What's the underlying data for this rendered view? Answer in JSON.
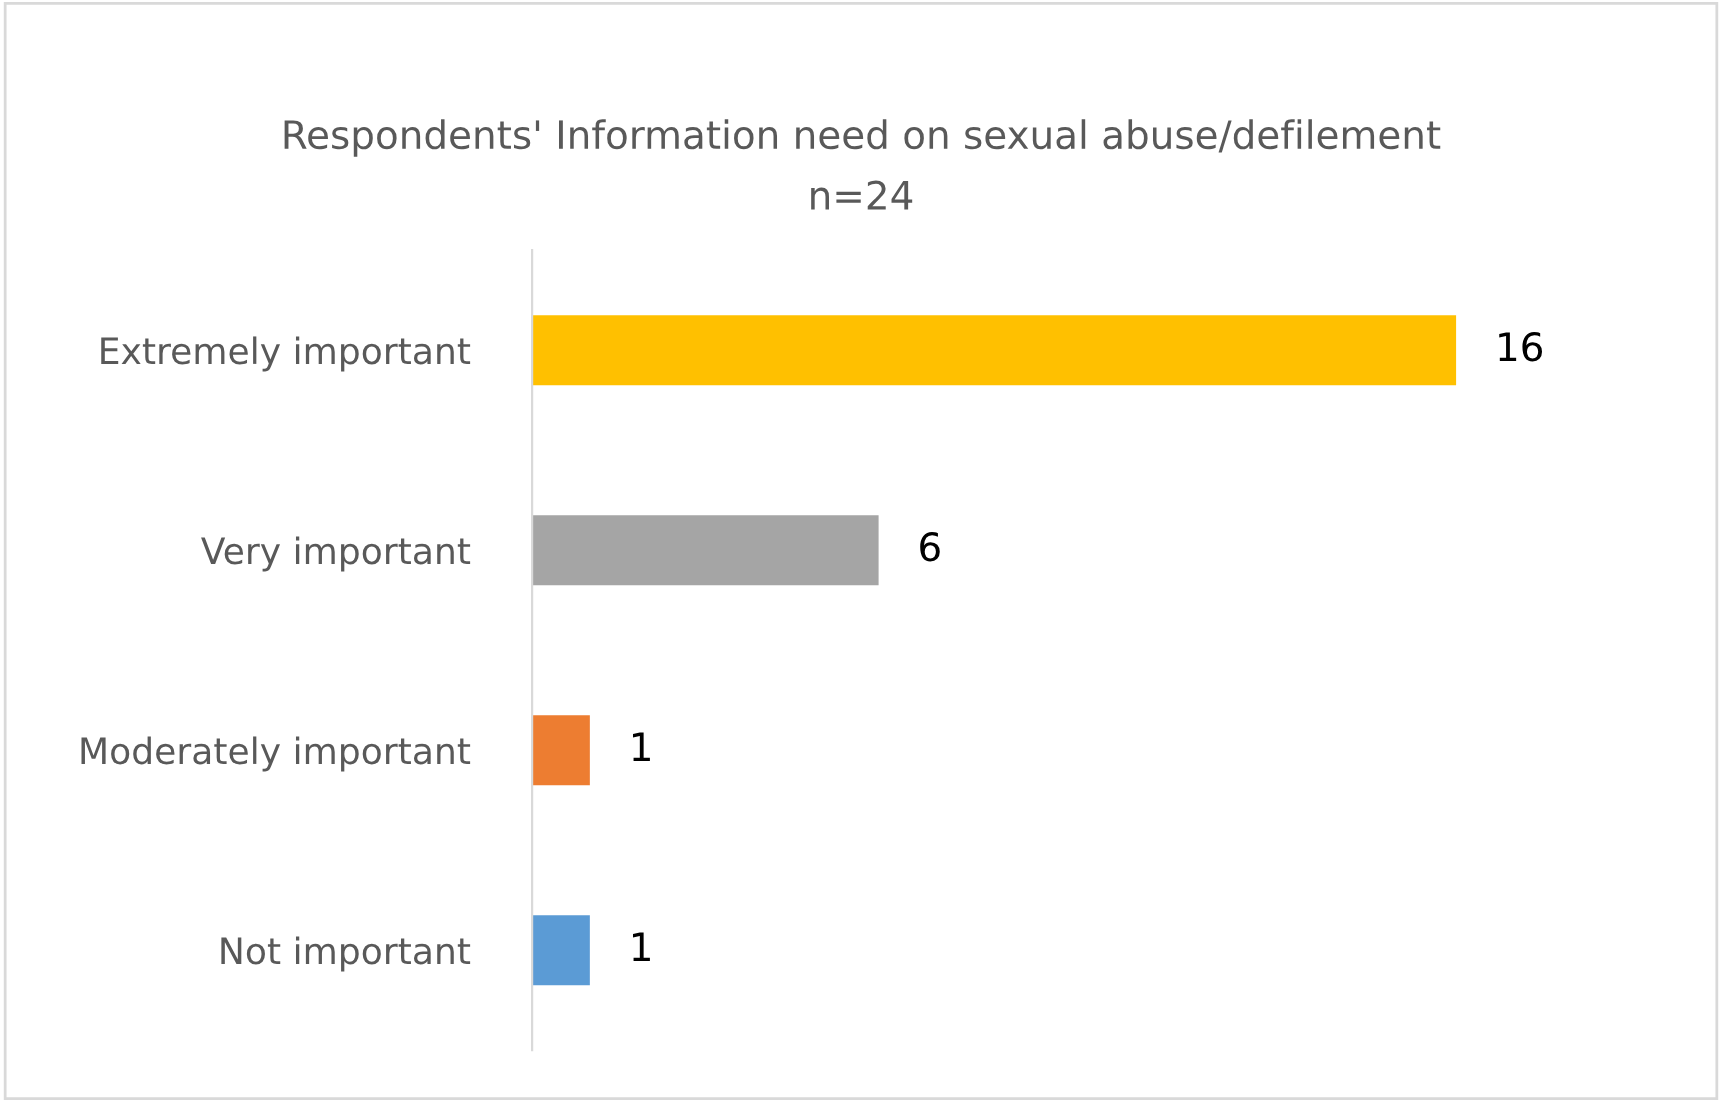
{
  "chart_data": {
    "type": "bar",
    "orientation": "horizontal",
    "title": "Respondents' Information need on sexual abuse/defilement",
    "subtitle": "n=24",
    "categories": [
      "Extremely important",
      "Very important",
      "Moderately important",
      "Not important"
    ],
    "values": [
      16,
      6,
      1,
      1
    ],
    "colors": [
      "#ffc000",
      "#a5a5a5",
      "#ed7d31",
      "#5b9bd5"
    ],
    "data_labels": true,
    "grid": false,
    "legend": false
  }
}
